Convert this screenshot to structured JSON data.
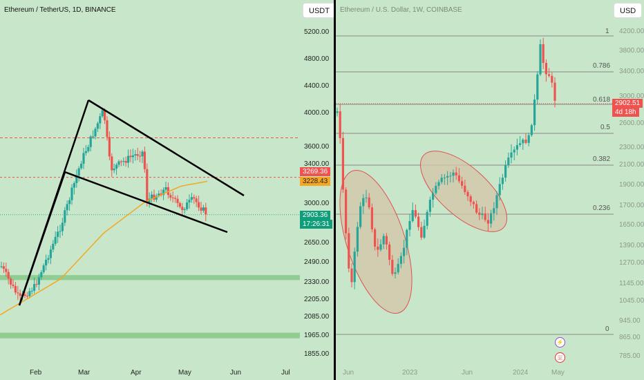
{
  "colors": {
    "background": "#c8e6c9",
    "up": "#26a69a",
    "down": "#ef5350",
    "ma": "#f5a623",
    "trendline": "#000000",
    "fib": "#888888",
    "zone": "#4caf50",
    "ellipse_fill": "#d4c4a8",
    "ellipse_stroke": "#e05050"
  },
  "left": {
    "title": "Ethereum / TetherUS, 1D, BINANCE",
    "currency_button": "USDT",
    "price_tags": {
      "red": "3269.36",
      "orange": "3228.43",
      "current_price": "2903.36",
      "current_time": "17:26:31"
    }
  },
  "right": {
    "title": "Ethereum / U.S. Dollar, 1W, COINBASE",
    "currency_button": "USD",
    "price_tags": {
      "price": "2902.51",
      "countdown": "4d 18h"
    }
  },
  "chart_data": [
    {
      "type": "candlestick",
      "title": "Ethereum / TetherUS, 1D, BINANCE",
      "y_axis_ticks": [
        "5200.00",
        "4800.00",
        "4400.00",
        "4000.00",
        "3600.00",
        "3400.00",
        "3000.00",
        "2650.00",
        "2490.00",
        "2330.00",
        "2205.00",
        "2085.00",
        "1965.00",
        "1855.00"
      ],
      "x_axis_ticks": [
        "Feb",
        "Mar",
        "Apr",
        "May",
        "Jun",
        "Jul"
      ],
      "close_path": [
        {
          "date": "Jan",
          "close": 2480
        },
        {
          "date": "Jan 22",
          "close": 2210
        },
        {
          "date": "Feb 1",
          "close": 2300
        },
        {
          "date": "Feb 15",
          "close": 2800
        },
        {
          "date": "Mar 1",
          "close": 3450
        },
        {
          "date": "Mar 12",
          "close": 4050
        },
        {
          "date": "Mar 20",
          "close": 3350
        },
        {
          "date": "Apr 1",
          "close": 3500
        },
        {
          "date": "Apr 10",
          "close": 3550
        },
        {
          "date": "Apr 13",
          "close": 3030
        },
        {
          "date": "Apr 25",
          "close": 3150
        },
        {
          "date": "May 1",
          "close": 2950
        },
        {
          "date": "May 8",
          "close": 3050
        },
        {
          "date": "May 14",
          "close": 2903.36
        }
      ],
      "moving_average": [
        {
          "date": "Jan",
          "value": 2100
        },
        {
          "date": "Feb 15",
          "value": 2360
        },
        {
          "date": "Mar 15",
          "value": 2740
        },
        {
          "date": "Apr 10",
          "value": 3020
        },
        {
          "date": "May 1",
          "value": 3180
        },
        {
          "date": "May 14",
          "value": 3228.43
        }
      ],
      "horizontal_levels": [
        3710,
        3269.36,
        2903.36
      ],
      "support_zones": [
        [
          2350,
          2390
        ],
        [
          1950,
          1985
        ]
      ],
      "pattern": "bullish flag (pole + descending channel)"
    },
    {
      "type": "candlestick",
      "title": "Ethereum / U.S. Dollar, 1W, COINBASE",
      "y_axis_ticks": [
        "4200.00",
        "3800.00",
        "3400.00",
        "3000.00",
        "2600.00",
        "2300.00",
        "2100.00",
        "1900.00",
        "1700.00",
        "1650.00",
        "1390.00",
        "1270.00",
        "1145.00",
        "1045.00",
        "945.00",
        "865.00",
        "785.00"
      ],
      "x_axis_ticks": [
        "Jun",
        "2023",
        "Jun",
        "2024",
        "May"
      ],
      "close_path": [
        {
          "date": "Apr 2022",
          "close": 2900
        },
        {
          "date": "Jun 2022",
          "close": 1100
        },
        {
          "date": "Aug 2022",
          "close": 1700
        },
        {
          "date": "Nov 2022",
          "close": 1250
        },
        {
          "date": "Jan 2023",
          "close": 1550
        },
        {
          "date": "Apr 2023",
          "close": 2000
        },
        {
          "date": "Aug 2023",
          "close": 1650
        },
        {
          "date": "Oct 2023",
          "close": 1800
        },
        {
          "date": "Dec 2023",
          "close": 2300
        },
        {
          "date": "Mar 2024",
          "close": 3950
        },
        {
          "date": "Apr 2024",
          "close": 3200
        },
        {
          "date": "May 2024",
          "close": 2902.51
        }
      ],
      "fibonacci_levels": [
        {
          "label": "1",
          "price": 4090
        },
        {
          "label": "0.786",
          "price": 3450
        },
        {
          "label": "0.618",
          "price": 2900
        },
        {
          "label": "0.5",
          "price": 2480
        },
        {
          "label": "0.382",
          "price": 2080
        },
        {
          "label": "0.236",
          "price": 1630
        },
        {
          "label": "0",
          "price": 880
        }
      ],
      "pattern": "two highlighted consolidation ellipses"
    }
  ]
}
